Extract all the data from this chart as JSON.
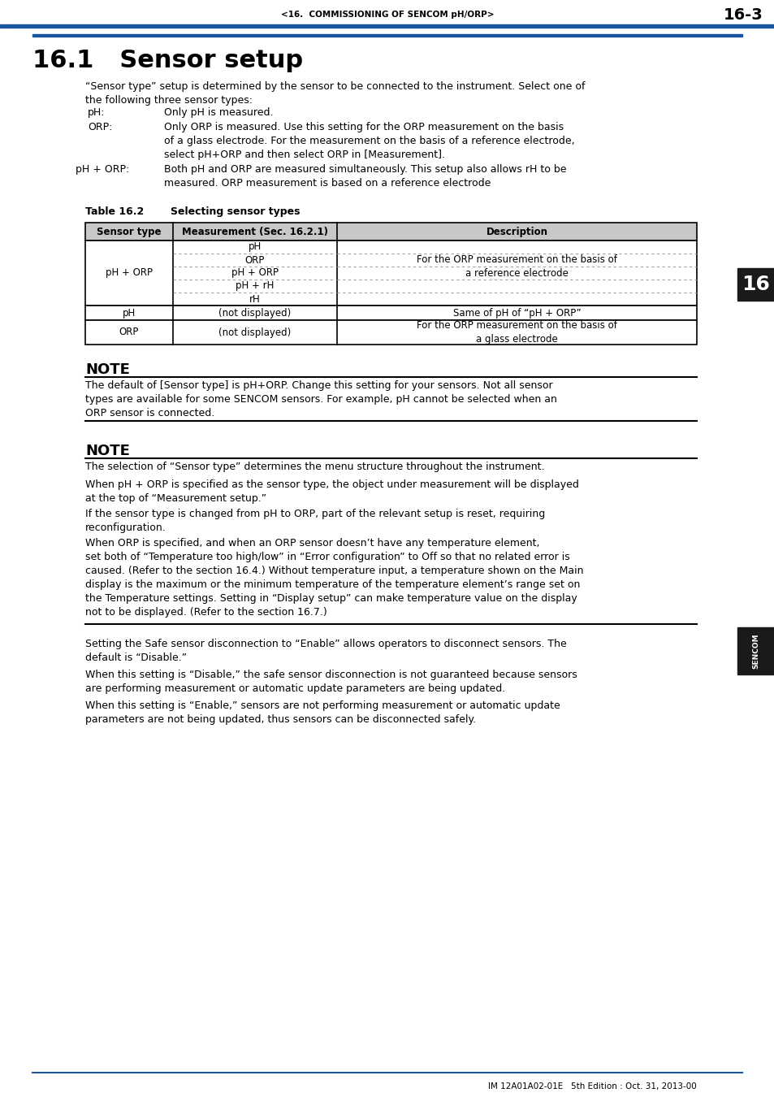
{
  "header_text": "<16.  COMMISSIONING OF SENCOM pH/ORP>",
  "header_page": "16-3",
  "header_line_color": "#1a56a0",
  "title": "16.1   Sensor setup",
  "intro_text": "“Sensor type” setup is determined by the sensor to be connected to the instrument. Select one of\nthe following three sensor types:",
  "sensor_types_labels": [
    "pH:",
    "ORP:",
    "pH + ORP:"
  ],
  "sensor_types_texts": [
    "Only pH is measured.",
    "Only ORP is measured. Use this setting for the ORP measurement on the basis\nof a glass electrode. For the measurement on the basis of a reference electrode,\nselect pH+ORP and then select ORP in [Measurement].",
    "Both pH and ORP are measured simultaneously. This setup also allows rH to be\nmeasured. ORP measurement is based on a reference electrode"
  ],
  "table_label": "Table 16.2",
  "table_title_text": "Selecting sensor types",
  "table_headers": [
    "Sensor type",
    "Measurement (Sec. 16.2.1)",
    "Description"
  ],
  "row1_col0": "pH + ORP",
  "row1_col1_items": [
    "pH",
    "ORP",
    "pH + ORP",
    "pH + rH",
    "rH"
  ],
  "row1_col2": "For the ORP measurement on the basis of\na reference electrode",
  "row2_col0": "pH",
  "row2_col1": "(not displayed)",
  "row2_col2": "Same of pH of “pH + ORP”",
  "row3_col0": "ORP",
  "row3_col1": "(not displayed)",
  "row3_col2": "For the ORP measurement on the basis of\na glass electrode",
  "note1_title": "NOTE",
  "note1_text": "The default of [Sensor type] is pH+ORP. Change this setting for your sensors. Not all sensor\ntypes are available for some SENCOM sensors. For example, pH cannot be selected when an\nORP sensor is connected.",
  "note2_title": "NOTE",
  "note2_paragraphs": [
    "The selection of “Sensor type” determines the menu structure throughout the instrument.",
    "When pH + ORP is specified as the sensor type, the object under measurement will be displayed\nat the top of “Measurement setup.”",
    "If the sensor type is changed from pH to ORP, part of the relevant setup is reset, requiring\nreconfiguration.",
    "When ORP is specified, and when an ORP sensor doesn’t have any temperature element,\nset both of “Temperature too high/low” in “Error configuration” to Off so that no related error is\ncaused. (Refer to the section 16.4.) Without temperature input, a temperature shown on the Main\ndisplay is the maximum or the minimum temperature of the temperature element’s range set on\nthe Temperature settings. Setting in “Display setup” can make temperature value on the display\nnot to be displayed. (Refer to the section 16.7.)"
  ],
  "bottom_paragraphs": [
    "Setting the Safe sensor disconnection to “Enable” allows operators to disconnect sensors. The\ndefault is “Disable.”",
    "When this setting is “Disable,” the safe sensor disconnection is not guaranteed because sensors\nare performing measurement or automatic update parameters are being updated.",
    "When this setting is “Enable,” sensors are not performing measurement or automatic update\nparameters are not being updated, thus sensors can be disconnected safely."
  ],
  "sidebar_number": "16",
  "sencom_label": "SENCOM",
  "footer_text": "IM 12A01A02-01E   5th Edition : Oct. 31, 2013-00",
  "blue_color": "#1a56a0",
  "black": "#000000",
  "white": "#ffffff",
  "dark": "#1a1a1a",
  "gray_header": "#c8c8c8"
}
